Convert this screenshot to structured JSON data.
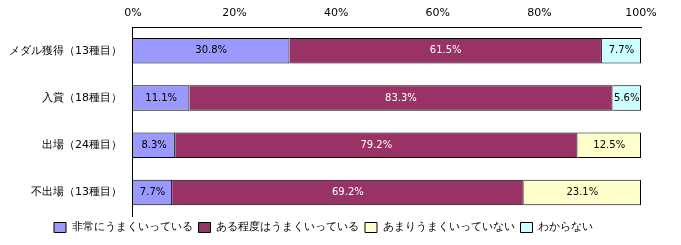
{
  "chart_data": {
    "type": "bar",
    "orientation": "horizontal",
    "stacked": true,
    "categories": [
      "メダル獲得（13種目）",
      "入賞（18種目）",
      "出場（24種目）",
      "不出場（13種目）"
    ],
    "series": [
      {
        "name": "非常にうまくいっている",
        "color": "#9999ff",
        "values": [
          30.8,
          11.1,
          8.3,
          7.7
        ],
        "value_labels": [
          "30.8%",
          "11.1%",
          "8.3%",
          "7.7%"
        ]
      },
      {
        "name": "ある程度はうまくいっている",
        "color": "#993366",
        "values": [
          61.5,
          83.3,
          79.2,
          69.2
        ],
        "value_labels": [
          "61.5%",
          "83.3%",
          "79.2%",
          "69.2%"
        ]
      },
      {
        "name": "あまりうまくいっていない",
        "color": "#ffffcc",
        "values": [
          null,
          null,
          12.5,
          23.1
        ],
        "value_labels": [
          null,
          null,
          "12.5%",
          "23.1%"
        ]
      },
      {
        "name": "わからない",
        "color": "#ccffff",
        "values": [
          7.7,
          5.6,
          null,
          null
        ],
        "value_labels": [
          "7.7%",
          "5.6%",
          null,
          null
        ]
      }
    ],
    "xlim": [
      0,
      100
    ],
    "xticks": [
      {
        "value": 0,
        "label": "0%"
      },
      {
        "value": 20,
        "label": "20%"
      },
      {
        "value": 40,
        "label": "40%"
      },
      {
        "value": 60,
        "label": "60%"
      },
      {
        "value": 80,
        "label": "80%"
      },
      {
        "value": 100,
        "label": "100%"
      }
    ],
    "grid": false,
    "data_labels": true,
    "legend": "bottom"
  }
}
